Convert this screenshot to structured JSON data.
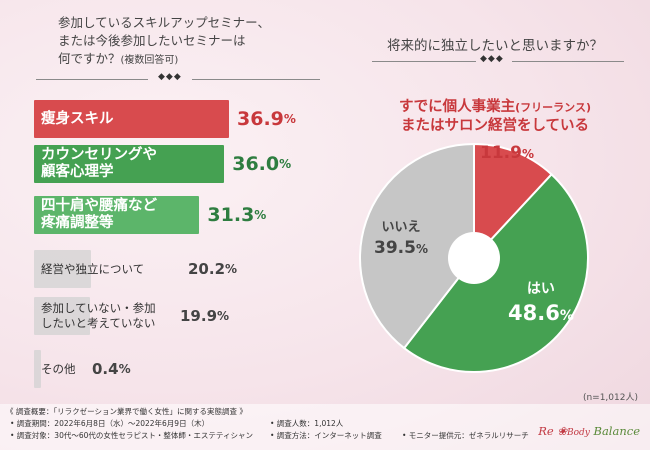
{
  "colors": {
    "red": "#d84b4e",
    "green": "#45a152",
    "grey": "#c6c6c6",
    "white": "#ffffff"
  },
  "left_question": {
    "line1": "参加しているスキルアップセミナー、",
    "line2": "または今後参加したいセミナーは",
    "line3_main": "何ですか？",
    "line3_note": "(複数回答可)"
  },
  "right_question": {
    "title": "将来的に独立したいと思いますか？"
  },
  "diamonds": "◆◆◆",
  "bars": [
    {
      "label_lines": [
        "瘦身スキル"
      ],
      "pct": "36.9",
      "unit": "%",
      "value": 36.9,
      "color": "#d84b4e",
      "style": "red"
    },
    {
      "label_lines": [
        "カウンセリングや",
        "顧客心理学"
      ],
      "pct": "36.0",
      "unit": "%",
      "value": 36.0,
      "color": "#45a152",
      "style": "green"
    },
    {
      "label_lines": [
        "四十肩や腰痛など",
        "疼痛調整等"
      ],
      "pct": "31.3",
      "unit": "%",
      "value": 31.3,
      "color": "#5cb56a",
      "style": "green"
    },
    {
      "label_lines": [
        "経営や独立について"
      ],
      "pct": "20.2",
      "unit": "%",
      "value": 20.2,
      "color": "#d1d1d1",
      "style": "grey"
    },
    {
      "label_lines": [
        "参加していない・参加",
        "したいと考えていない"
      ],
      "pct": "19.9",
      "unit": "%",
      "value": 19.9,
      "color": "#d1d1d1",
      "style": "grey"
    },
    {
      "label_lines": [
        "その他"
      ],
      "pct": "0.4",
      "unit": "%",
      "value": 0.4,
      "color": "#d1d1d1",
      "style": "grey"
    }
  ],
  "pie_callout": {
    "line1_main": "すでに個人事業主",
    "line1_note": "(フリーランス)",
    "line2": "またはサロン経営をしている"
  },
  "chart_data": [
    {
      "type": "bar",
      "orientation": "horizontal",
      "title": "参加しているスキルアップセミナー、または今後参加したいセミナーは何ですか？(複数回答可)",
      "categories": [
        "瘦身スキル",
        "カウンセリングや顧客心理学",
        "四十肩や腰痛など疼痛調整等",
        "経営や独立について",
        "参加していない・参加したいと考えていない",
        "その他"
      ],
      "values": [
        36.9,
        36.0,
        31.3,
        20.2,
        19.9,
        0.4
      ],
      "unit": "%"
    },
    {
      "type": "pie",
      "title": "将来的に独立したいと思いますか？",
      "slices": [
        {
          "label": "すでに個人事業主(フリーランス)またはサロン経営をしている",
          "short": "",
          "value": 11.9,
          "color": "#d84b4e"
        },
        {
          "label": "はい",
          "value": 48.6,
          "color": "#45a152"
        },
        {
          "label": "いいえ",
          "value": 39.5,
          "color": "#c6c6c6"
        }
      ],
      "unit": "%",
      "n_label": "(n=1,012人)"
    }
  ],
  "pie_labels": {
    "already": {
      "pct": "11.9",
      "unit": "%"
    },
    "yes": {
      "label": "はい",
      "pct": "48.6",
      "unit": "%"
    },
    "no": {
      "label": "いいえ",
      "pct": "39.5",
      "unit": "%"
    }
  },
  "n_label": "(n=1,012人)",
  "footer": {
    "overview": "《 調査概要：「リラクゼーション業界で働く女性」に関する実態調査 》",
    "period": "• 調査期間：2022年6月8日（水）〜2022年6月9日（木）",
    "target": "• 調査対象：30代〜60代の女性セラピスト・整体師・エステティシャン",
    "people": "• 調査人数：1,012人",
    "method": "• 調査方法：インターネット調査",
    "provider": "• モニター提供元：ゼネラルリサーチ"
  },
  "logo": {
    "re": "Re",
    "rose": "Body",
    "balance": "Balance"
  }
}
